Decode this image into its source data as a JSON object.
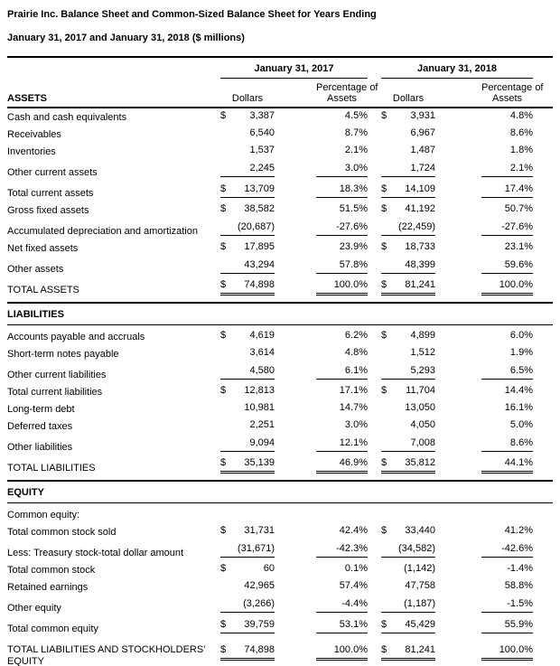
{
  "document": {
    "title_line1": "Prairie Inc. Balance Sheet and Common-Sized Balance Sheet for Years Ending",
    "title_line2": "January 31, 2017 and January 31, 2018 ($ millions)"
  },
  "header": {
    "row_header": "ASSETS",
    "groups": [
      "January 31, 2017",
      "January 31, 2018"
    ],
    "dollars_label": "Dollars",
    "pct_line1": "Percentage of",
    "pct_line2": "Assets"
  },
  "table": {
    "sections": [
      {
        "header": null,
        "rows": [
          {
            "label": "Cash and cash equivalents",
            "d1s": "$",
            "d1": "3,387",
            "p1": "4.5%",
            "d2s": "$",
            "d2": "3,931",
            "p2": "4.8%",
            "u": ""
          },
          {
            "label": "Receivables",
            "d1s": "",
            "d1": "6,540",
            "p1": "8.7%",
            "d2s": "",
            "d2": "6,967",
            "p2": "8.6%",
            "u": ""
          },
          {
            "label": "Inventories",
            "d1s": "",
            "d1": "1,537",
            "p1": "2.1%",
            "d2s": "",
            "d2": "1,487",
            "p2": "1.8%",
            "u": ""
          },
          {
            "label": "Other current assets",
            "d1s": "",
            "d1": "2,245",
            "p1": "3.0%",
            "d2s": "",
            "d2": "1,724",
            "p2": "2.1%",
            "u": "s"
          },
          {
            "label": "Total current assets",
            "d1s": "$",
            "d1": "13,709",
            "p1": "18.3%",
            "d2s": "$",
            "d2": "14,109",
            "p2": "17.4%",
            "u": "s"
          },
          {
            "label": "Gross fixed assets",
            "d1s": "$",
            "d1": "38,582",
            "p1": "51.5%",
            "d2s": "$",
            "d2": "41,192",
            "p2": "50.7%",
            "u": ""
          },
          {
            "label": "Accumulated depreciation and amortization",
            "d1s": "",
            "d1": "(20,687)",
            "p1": "-27.6%",
            "d2s": "",
            "d2": "(22,459)",
            "p2": "-27.6%",
            "u": "s"
          },
          {
            "label": "Net fixed assets",
            "d1s": "$",
            "d1": "17,895",
            "p1": "23.9%",
            "d2s": "$",
            "d2": "18,733",
            "p2": "23.1%",
            "u": ""
          },
          {
            "label": "Other assets",
            "d1s": "",
            "d1": "43,294",
            "p1": "57.8%",
            "d2s": "",
            "d2": "48,399",
            "p2": "59.6%",
            "u": "s"
          },
          {
            "label": "TOTAL ASSETS",
            "d1s": "$",
            "d1": "74,898",
            "p1": "100.0%",
            "d2s": "$",
            "d2": "81,241",
            "p2": "100.0%",
            "u": "d"
          }
        ]
      },
      {
        "header": "LIABILITIES",
        "rows": [
          {
            "label": "Accounts payable and accruals",
            "d1s": "$",
            "d1": "4,619",
            "p1": "6.2%",
            "d2s": "$",
            "d2": "4,899",
            "p2": "6.0%",
            "u": ""
          },
          {
            "label": "Short-term notes payable",
            "d1s": "",
            "d1": "3,614",
            "p1": "4.8%",
            "d2s": "",
            "d2": "1,512",
            "p2": "1.9%",
            "u": ""
          },
          {
            "label": "Other current liabilities",
            "d1s": "",
            "d1": "4,580",
            "p1": "6.1%",
            "d2s": "",
            "d2": "5,293",
            "p2": "6.5%",
            "u": "s"
          },
          {
            "label": "Total current liabilities",
            "d1s": "$",
            "d1": "12,813",
            "p1": "17.1%",
            "d2s": "$",
            "d2": "11,704",
            "p2": "14.4%",
            "u": ""
          },
          {
            "label": "Long-term debt",
            "d1s": "",
            "d1": "10,981",
            "p1": "14.7%",
            "d2s": "",
            "d2": "13,050",
            "p2": "16.1%",
            "u": ""
          },
          {
            "label": "Deferred taxes",
            "d1s": "",
            "d1": "2,251",
            "p1": "3.0%",
            "d2s": "",
            "d2": "4,050",
            "p2": "5.0%",
            "u": ""
          },
          {
            "label": "Other liabilities",
            "d1s": "",
            "d1": "9,094",
            "p1": "12.1%",
            "d2s": "",
            "d2": "7,008",
            "p2": "8.6%",
            "u": "s"
          },
          {
            "label": "TOTAL LIABILITIES",
            "d1s": "$",
            "d1": "35,139",
            "p1": "46.9%",
            "d2s": "$",
            "d2": "35,812",
            "p2": "44.1%",
            "u": "d"
          }
        ]
      },
      {
        "header": "EQUITY",
        "rows": [
          {
            "label": "Common equity:",
            "d1s": "",
            "d1": "",
            "p1": "",
            "d2s": "",
            "d2": "",
            "p2": "",
            "u": ""
          },
          {
            "label": "Total common stock sold",
            "d1s": "$",
            "d1": "31,731",
            "p1": "42.4%",
            "d2s": "$",
            "d2": "33,440",
            "p2": "41.2%",
            "u": ""
          },
          {
            "label": "Less: Treasury stock-total dollar amount",
            "d1s": "",
            "d1": "(31,671)",
            "p1": "-42.3%",
            "d2s": "",
            "d2": "(34,582)",
            "p2": "-42.6%",
            "u": "s"
          },
          {
            "label": "Total common stock",
            "d1s": "$",
            "d1": "60",
            "p1": "0.1%",
            "d2s": "",
            "d2": "(1,142)",
            "p2": "-1.4%",
            "u": ""
          },
          {
            "label": "Retained earnings",
            "d1s": "",
            "d1": "42,965",
            "p1": "57.4%",
            "d2s": "",
            "d2": "47,758",
            "p2": "58.8%",
            "u": ""
          },
          {
            "label": "Other equity",
            "d1s": "",
            "d1": "(3,266)",
            "p1": "-4.4%",
            "d2s": "",
            "d2": "(1,187)",
            "p2": "-1.5%",
            "u": "s"
          },
          {
            "label": "Total common equity",
            "d1s": "$",
            "d1": "39,759",
            "p1": "53.1%",
            "d2s": "$",
            "d2": "45,429",
            "p2": "55.9%",
            "u": "s"
          },
          {
            "label": "TOTAL LIABILITIES AND STOCKHOLDERS' EQUITY",
            "d1s": "$",
            "d1": "74,898",
            "p1": "100.0%",
            "d2s": "$",
            "d2": "81,241",
            "p2": "100.0%",
            "u": "d"
          }
        ]
      }
    ]
  }
}
